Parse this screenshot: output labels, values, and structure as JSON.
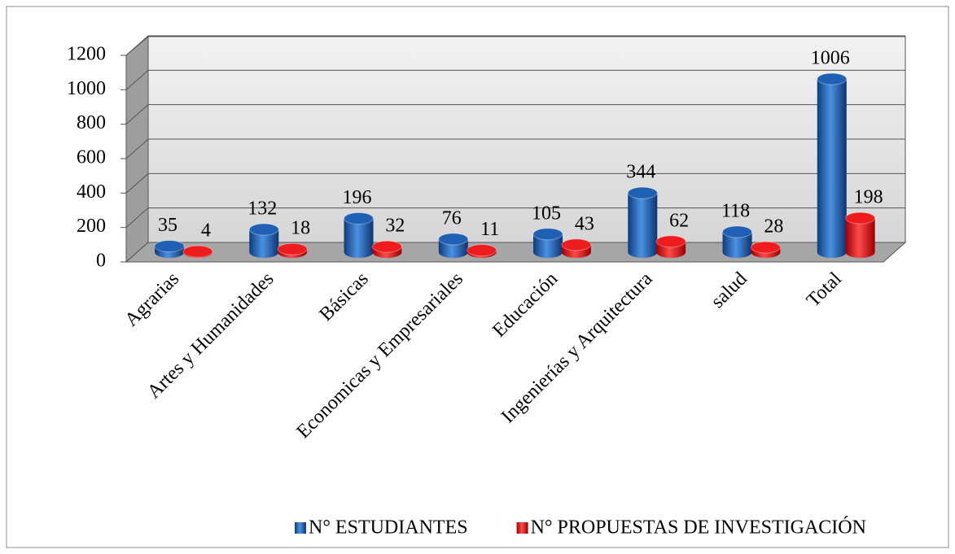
{
  "chart_data": {
    "type": "bar3d",
    "categories": [
      "Agrarias",
      "Artes y Humanidades",
      "Básicas",
      "Economicas y Empresariales",
      "Educación",
      "Ingenierías y Arquitectura",
      "salud",
      "Total"
    ],
    "series": [
      {
        "name": "N° ESTUDIANTES",
        "color": "#1f5fb4",
        "values": [
          35,
          132,
          196,
          76,
          105,
          344,
          118,
          1006
        ]
      },
      {
        "name": "N° PROPUESTAS DE INVESTIGACIÓN",
        "color": "#ee1c1c",
        "values": [
          4,
          18,
          32,
          11,
          43,
          62,
          28,
          198
        ]
      }
    ],
    "ylim": [
      0,
      1200
    ],
    "yticks": [
      0,
      200,
      400,
      600,
      800,
      1000,
      1200
    ],
    "grid": true,
    "legend": "bottom"
  }
}
